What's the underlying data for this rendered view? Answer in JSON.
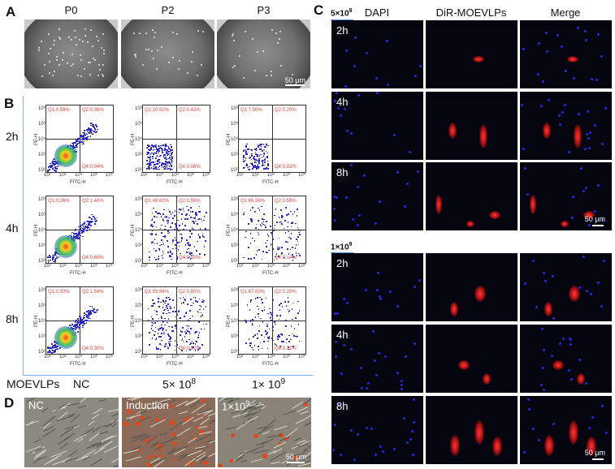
{
  "panels": {
    "A": {
      "letter": "A",
      "headers": [
        "P0",
        "P2",
        "P3"
      ],
      "scale": "50 μm"
    },
    "B": {
      "letter": "B",
      "rows": [
        "2h",
        "4h",
        "8h"
      ],
      "axis_x": "FITC-H",
      "axis_y": "PE-H",
      "ticks": [
        "10²",
        "10³",
        "10⁴",
        "10⁵",
        "10⁶"
      ],
      "plots": [
        [
          [
            "Q1:0.58%",
            "Q2:0.36%",
            "Q4:0.04%"
          ],
          [
            "Q1:20.92%",
            "Q2:0.42%",
            "Q4:0.08%"
          ],
          [
            "Q1:7.50%",
            "Q2:0.20%",
            "Q4:0.02%"
          ]
        ],
        [
          [
            "Q1:0.26%",
            "Q2:1.40%",
            "Q4:0.60%"
          ],
          [
            "Q1:48.62%",
            "Q2:0.56%",
            "Q4:0.10%"
          ],
          [
            "Q1:66.54%",
            "Q2:0.58%",
            "Q4:0.14%"
          ]
        ],
        [
          [
            "Q1:0.32%",
            "Q2:1.54%",
            "Q4:0.30%"
          ],
          [
            "Q1:59.94%",
            "Q2:0.80%",
            "Q4:0.02%"
          ],
          [
            "Q1:67.00%",
            "Q2:0.20%",
            "Q4:0.12%"
          ]
        ]
      ],
      "bottom": {
        "label": "MOEVLPs",
        "c1": "NC",
        "c2": "5× 10",
        "c2sup": "8",
        "c3": "1× 10",
        "c3sup": "9"
      }
    },
    "C": {
      "letter": "C",
      "headers": [
        "DAPI",
        "DiR-MOEVLPs",
        "Merge"
      ],
      "conc1": "5×10",
      "conc1sup": "8",
      "conc2": "1×10",
      "conc2sup": "9",
      "rows": [
        "2h",
        "4h",
        "8h"
      ],
      "scale": "50 μm"
    },
    "D": {
      "letter": "D",
      "labels": [
        "NC",
        "Induction",
        "1×10"
      ],
      "sup": "9",
      "scale": "50 μm"
    }
  },
  "colors": {
    "dapi": "#2828e0",
    "dir": "#e02020",
    "gate": "#e0403c",
    "frame": "#7fb3e6"
  }
}
